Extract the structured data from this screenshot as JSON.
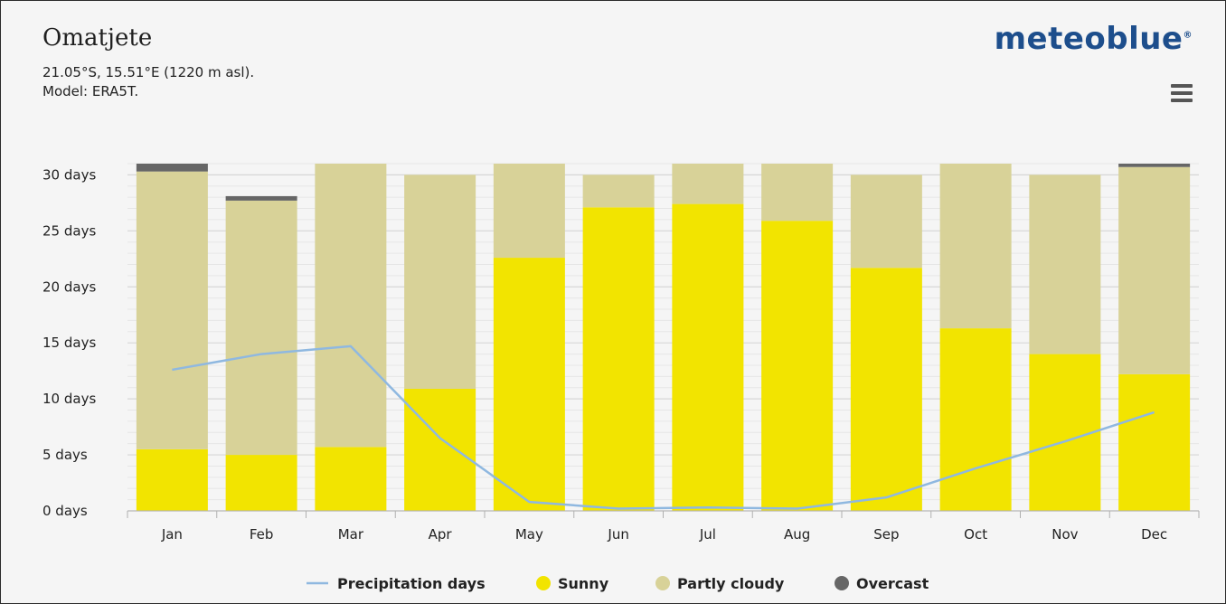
{
  "header": {
    "location": "Omatjete",
    "coords": "21.05°S, 15.51°E (1220 m asl).",
    "model": "Model: ERA5T.",
    "brand": "meteoblue",
    "brand_mark": "®"
  },
  "colors": {
    "sunny": "#f2e400",
    "partly_cloudy": "#d8d298",
    "overcast": "#666666",
    "precipitation": "#8fb8e0",
    "background": "#f5f5f5"
  },
  "chart_data": {
    "type": "bar",
    "stacked": true,
    "categories": [
      "Jan",
      "Feb",
      "Mar",
      "Apr",
      "May",
      "Jun",
      "Jul",
      "Aug",
      "Sep",
      "Oct",
      "Nov",
      "Dec"
    ],
    "y_unit": "days",
    "ylim": [
      0,
      31
    ],
    "yticks": [
      0,
      5,
      10,
      15,
      20,
      25,
      30
    ],
    "ytick_labels": [
      "0 days",
      "5 days",
      "10 days",
      "15 days",
      "20 days",
      "25 days",
      "30 days"
    ],
    "grid": true,
    "legend_position": "bottom",
    "series": [
      {
        "name": "Sunny",
        "key": "sunny",
        "values": [
          5.5,
          5.0,
          5.7,
          10.9,
          22.6,
          27.1,
          27.4,
          25.9,
          21.7,
          16.3,
          14.0,
          12.2
        ]
      },
      {
        "name": "Partly cloudy",
        "key": "partly_cloudy",
        "values": [
          24.8,
          22.7,
          25.3,
          19.1,
          8.4,
          2.9,
          3.6,
          5.1,
          8.3,
          14.7,
          16.0,
          18.5
        ]
      },
      {
        "name": "Overcast",
        "key": "overcast",
        "values": [
          0.7,
          0.4,
          0.0,
          0.0,
          0.0,
          0.0,
          0.0,
          0.0,
          0.0,
          0.0,
          0.0,
          0.3
        ]
      }
    ],
    "line_series": {
      "name": "Precipitation days",
      "key": "precipitation",
      "values": [
        12.6,
        14.0,
        14.7,
        6.5,
        0.8,
        0.2,
        0.3,
        0.2,
        1.2,
        3.8,
        6.2,
        8.8
      ]
    },
    "legend": [
      "Precipitation days",
      "Sunny",
      "Partly cloudy",
      "Overcast"
    ]
  }
}
